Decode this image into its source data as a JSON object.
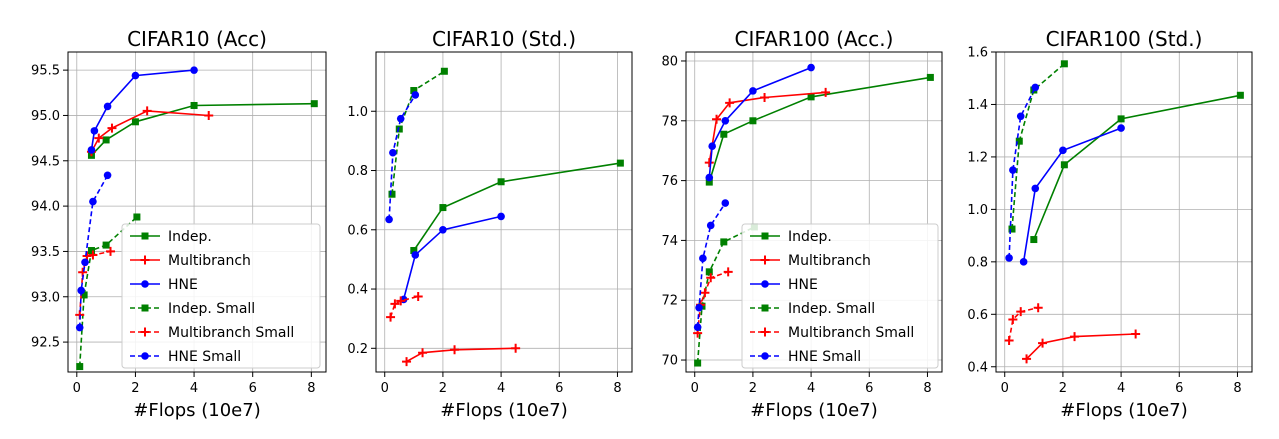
{
  "colors": {
    "indep": "#008000",
    "multibranch": "#ff0000",
    "hne": "#0000ff"
  },
  "chart_data": [
    {
      "type": "line",
      "title": "CIFAR10 (Acc)",
      "xlabel": "#Flops (10e7)",
      "ylabel": "",
      "xlim": [
        -0.3,
        8.5
      ],
      "ylim": [
        92.17,
        95.7
      ],
      "xticks": [
        0,
        2,
        4,
        6,
        8
      ],
      "xtick_labels": [
        "0",
        "2",
        "4",
        "6",
        "8"
      ],
      "yticks": [
        92.5,
        93.0,
        93.5,
        94.0,
        94.5,
        95.0,
        95.5
      ],
      "ytick_labels": [
        "92.5",
        "93.0",
        "93.5",
        "94.0",
        "94.5",
        "95.0",
        "95.5"
      ],
      "grid": true,
      "legend": "bottom-right",
      "series": [
        {
          "name": "Indep.",
          "style": "solid",
          "marker": "square",
          "color": "indep",
          "x": [
            0.5,
            1.0,
            2.0,
            4.0,
            8.1
          ],
          "y": [
            94.56,
            94.73,
            94.93,
            95.11,
            95.13
          ]
        },
        {
          "name": "Multibranch",
          "style": "solid",
          "marker": "plus",
          "color": "multibranch",
          "x": [
            0.5,
            0.75,
            1.2,
            2.4,
            4.5
          ],
          "y": [
            94.6,
            94.75,
            94.86,
            95.05,
            95.0
          ]
        },
        {
          "name": "HNE",
          "style": "solid",
          "marker": "circle",
          "color": "hne",
          "x": [
            0.5,
            0.6,
            1.05,
            2.0,
            4.0
          ],
          "y": [
            94.62,
            94.83,
            95.1,
            95.44,
            95.5
          ]
        },
        {
          "name": "Indep. Small",
          "style": "dashed",
          "marker": "square",
          "color": "indep",
          "x": [
            0.1,
            0.25,
            0.5,
            1.0,
            2.05
          ],
          "y": [
            92.23,
            93.02,
            93.51,
            93.57,
            93.88
          ]
        },
        {
          "name": "Multibranch Small",
          "style": "dashed",
          "marker": "plus",
          "color": "multibranch",
          "x": [
            0.1,
            0.2,
            0.35,
            0.55,
            1.15
          ],
          "y": [
            92.8,
            93.27,
            93.45,
            93.46,
            93.5
          ]
        },
        {
          "name": "HNE Small",
          "style": "dashed",
          "marker": "circle",
          "color": "hne",
          "x": [
            0.1,
            0.15,
            0.28,
            0.55,
            1.05
          ],
          "y": [
            92.66,
            93.07,
            93.38,
            94.05,
            94.34
          ]
        }
      ]
    },
    {
      "type": "line",
      "title": "CIFAR10 (Std.)",
      "xlabel": "#Flops (10e7)",
      "ylabel": "",
      "xlim": [
        -0.3,
        8.5
      ],
      "ylim": [
        0.12,
        1.2
      ],
      "xticks": [
        0,
        2,
        4,
        6,
        8
      ],
      "xtick_labels": [
        "0",
        "2",
        "4",
        "6",
        "8"
      ],
      "yticks": [
        0.2,
        0.4,
        0.6,
        0.8,
        1.0
      ],
      "ytick_labels": [
        "0.2",
        "0.4",
        "0.6",
        "0.8",
        "1.0"
      ],
      "grid": true,
      "legend": "none",
      "series": [
        {
          "name": "Indep.",
          "style": "solid",
          "marker": "square",
          "color": "indep",
          "x": [
            1.0,
            2.0,
            4.0,
            8.1
          ],
          "y": [
            0.53,
            0.675,
            0.762,
            0.825
          ]
        },
        {
          "name": "Multibranch",
          "style": "solid",
          "marker": "plus",
          "color": "multibranch",
          "x": [
            0.75,
            1.3,
            2.4,
            4.5
          ],
          "y": [
            0.155,
            0.185,
            0.195,
            0.2
          ]
        },
        {
          "name": "HNE",
          "style": "solid",
          "marker": "circle",
          "color": "hne",
          "x": [
            0.65,
            1.05,
            2.0,
            4.0
          ],
          "y": [
            0.365,
            0.515,
            0.6,
            0.645
          ]
        },
        {
          "name": "Indep. Small",
          "style": "dashed",
          "marker": "square",
          "color": "indep",
          "x": [
            0.25,
            0.5,
            1.0,
            2.05
          ],
          "y": [
            0.72,
            0.94,
            1.07,
            1.135
          ]
        },
        {
          "name": "Multibranch Small",
          "style": "dashed",
          "marker": "plus",
          "color": "multibranch",
          "x": [
            0.2,
            0.35,
            0.55,
            1.15
          ],
          "y": [
            0.305,
            0.35,
            0.36,
            0.375
          ]
        },
        {
          "name": "HNE Small",
          "style": "dashed",
          "marker": "circle",
          "color": "hne",
          "x": [
            0.15,
            0.28,
            0.55,
            1.05
          ],
          "y": [
            0.635,
            0.86,
            0.975,
            1.055
          ]
        }
      ]
    },
    {
      "type": "line",
      "title": "CIFAR100 (Acc.)",
      "xlabel": "#Flops (10e7)",
      "ylabel": "",
      "xlim": [
        -0.3,
        8.5
      ],
      "ylim": [
        69.6,
        80.3
      ],
      "xticks": [
        0,
        2,
        4,
        6,
        8
      ],
      "xtick_labels": [
        "0",
        "2",
        "4",
        "6",
        "8"
      ],
      "yticks": [
        70,
        72,
        74,
        76,
        78,
        80
      ],
      "ytick_labels": [
        "70",
        "72",
        "74",
        "76",
        "78",
        "80"
      ],
      "grid": true,
      "legend": "bottom-right",
      "series": [
        {
          "name": "Indep.",
          "style": "solid",
          "marker": "square",
          "color": "indep",
          "x": [
            0.5,
            1.0,
            2.0,
            4.0,
            8.1
          ],
          "y": [
            75.95,
            77.55,
            78.0,
            78.8,
            79.45
          ]
        },
        {
          "name": "Multibranch",
          "style": "solid",
          "marker": "plus",
          "color": "multibranch",
          "x": [
            0.5,
            0.75,
            1.2,
            2.4,
            4.5
          ],
          "y": [
            76.6,
            78.05,
            78.6,
            78.78,
            78.95
          ]
        },
        {
          "name": "HNE",
          "style": "solid",
          "marker": "circle",
          "color": "hne",
          "x": [
            0.5,
            0.6,
            1.05,
            2.0,
            4.0
          ],
          "y": [
            76.1,
            77.15,
            78.0,
            79.0,
            79.78
          ]
        },
        {
          "name": "Indep. Small",
          "style": "dashed",
          "marker": "square",
          "color": "indep",
          "x": [
            0.1,
            0.25,
            0.5,
            1.0,
            2.05
          ],
          "y": [
            69.9,
            71.8,
            72.95,
            73.95,
            74.45
          ]
        },
        {
          "name": "Multibranch Small",
          "style": "dashed",
          "marker": "plus",
          "color": "multibranch",
          "x": [
            0.1,
            0.2,
            0.35,
            0.55,
            1.15
          ],
          "y": [
            70.9,
            71.85,
            72.25,
            72.75,
            72.95
          ]
        },
        {
          "name": "HNE Small",
          "style": "dashed",
          "marker": "circle",
          "color": "hne",
          "x": [
            0.1,
            0.15,
            0.28,
            0.55,
            1.05
          ],
          "y": [
            71.1,
            71.75,
            73.4,
            74.5,
            75.25
          ]
        }
      ]
    },
    {
      "type": "line",
      "title": "CIFAR100 (Std.)",
      "xlabel": "#Flops (10e7)",
      "ylabel": "",
      "xlim": [
        -0.3,
        8.5
      ],
      "ylim": [
        0.38,
        1.6
      ],
      "xticks": [
        0,
        2,
        4,
        6,
        8
      ],
      "xtick_labels": [
        "0",
        "2",
        "4",
        "6",
        "8"
      ],
      "yticks": [
        0.4,
        0.6,
        0.8,
        1.0,
        1.2,
        1.4,
        1.6
      ],
      "ytick_labels": [
        "0.4",
        "0.6",
        "0.8",
        "1.0",
        "1.2",
        "1.4",
        "1.6"
      ],
      "grid": true,
      "legend": "none",
      "series": [
        {
          "name": "Indep.",
          "style": "solid",
          "marker": "square",
          "color": "indep",
          "x": [
            1.0,
            2.05,
            4.0,
            8.1
          ],
          "y": [
            0.885,
            1.17,
            1.345,
            1.435
          ]
        },
        {
          "name": "Multibranch",
          "style": "solid",
          "marker": "plus",
          "color": "multibranch",
          "x": [
            0.75,
            1.3,
            2.4,
            4.5
          ],
          "y": [
            0.43,
            0.49,
            0.515,
            0.525
          ]
        },
        {
          "name": "HNE",
          "style": "solid",
          "marker": "circle",
          "color": "hne",
          "x": [
            0.65,
            1.05,
            2.0,
            4.0
          ],
          "y": [
            0.8,
            1.08,
            1.225,
            1.31
          ]
        },
        {
          "name": "Indep. Small",
          "style": "dashed",
          "marker": "square",
          "color": "indep",
          "x": [
            0.25,
            0.5,
            1.0,
            2.05
          ],
          "y": [
            0.925,
            1.26,
            1.455,
            1.555
          ]
        },
        {
          "name": "Multibranch Small",
          "style": "dashed",
          "marker": "plus",
          "color": "multibranch",
          "x": [
            0.15,
            0.28,
            0.55,
            1.15
          ],
          "y": [
            0.5,
            0.58,
            0.61,
            0.625
          ]
        },
        {
          "name": "HNE Small",
          "style": "dashed",
          "marker": "circle",
          "color": "hne",
          "x": [
            0.15,
            0.28,
            0.55,
            1.05
          ],
          "y": [
            0.815,
            1.15,
            1.355,
            1.465
          ]
        }
      ]
    }
  ]
}
